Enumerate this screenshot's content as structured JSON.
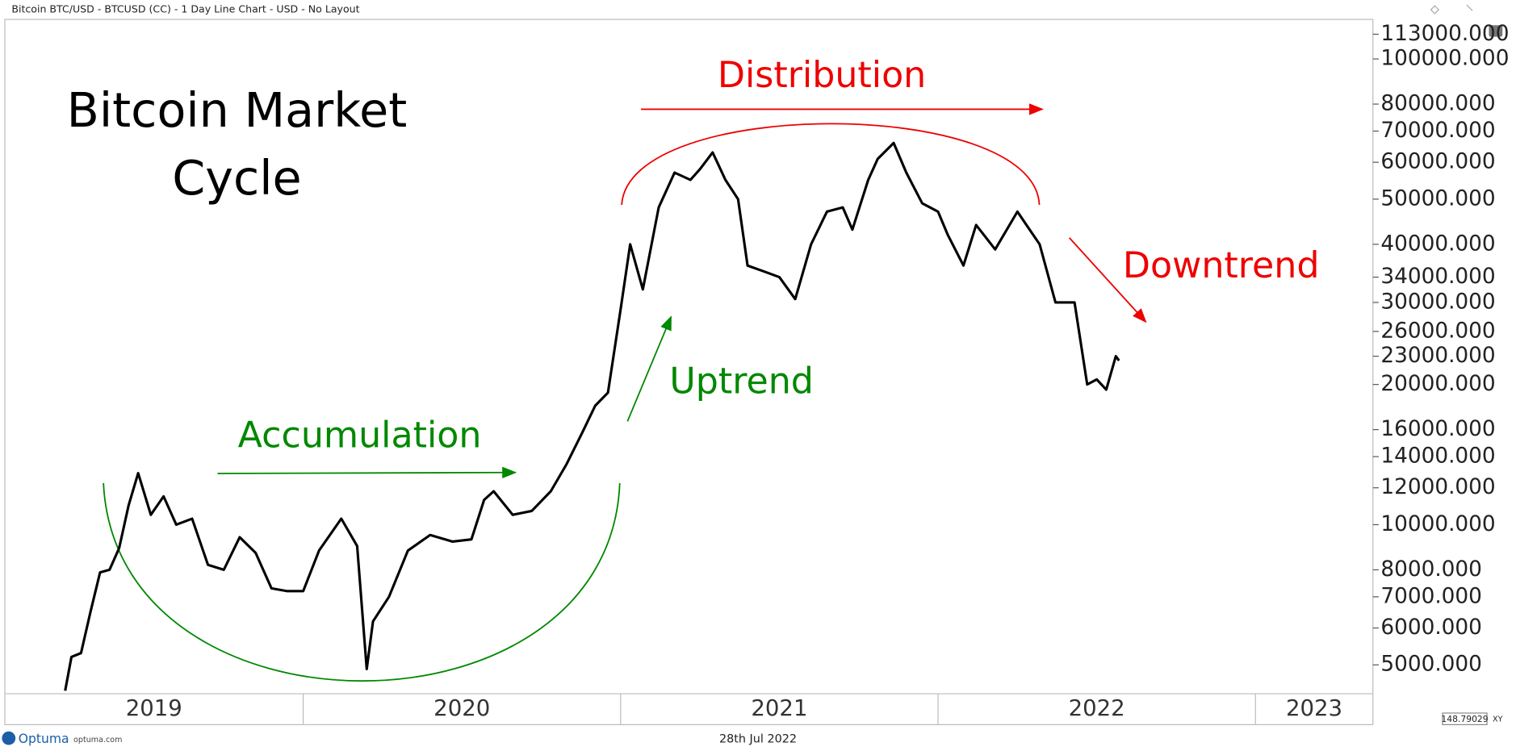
{
  "header": "Bitcoin BTC/USD - BTCUSD (CC) - 1 Day Line Chart - USD - No Layout",
  "footer": {
    "brand": "Optuma",
    "site": "optuma.com",
    "date": "28th Jul 2022",
    "price_box": "148.79029",
    "xy": "XY"
  },
  "chart_data": {
    "type": "line",
    "title": "Bitcoin Market Cycle",
    "annotations": [
      "Distribution",
      "Downtrend",
      "Uptrend",
      "Accumulation"
    ],
    "log_scale": true,
    "color": "#000000",
    "xlim": [
      2019.06,
      2023.37
    ],
    "xticks": [
      2019,
      2020,
      2021,
      2022,
      2023
    ],
    "ylim": [
      4335,
      121600
    ],
    "yticks": [
      {
        "value": 113000,
        "label": "113000.000"
      },
      {
        "value": 100000,
        "label": "100000.000"
      },
      {
        "value": 80000,
        "label": "80000.000"
      },
      {
        "value": 70000,
        "label": "70000.000"
      },
      {
        "value": 60000,
        "label": "60000.000"
      },
      {
        "value": 50000,
        "label": "50000.000"
      },
      {
        "value": 40000,
        "label": "40000.000"
      },
      {
        "value": 34000,
        "label": "34000.000"
      },
      {
        "value": 30000,
        "label": "30000.000"
      },
      {
        "value": 26000,
        "label": "26000.000"
      },
      {
        "value": 23000,
        "label": "23000.000"
      },
      {
        "value": 20000,
        "label": "20000.000"
      },
      {
        "value": 16000,
        "label": "16000.000"
      },
      {
        "value": 14000,
        "label": "14000.000"
      },
      {
        "value": 12000,
        "label": "12000.000"
      },
      {
        "value": 10000,
        "label": "10000.000"
      },
      {
        "value": 8000,
        "label": "8000.000"
      },
      {
        "value": 7000,
        "label": "7000.000"
      },
      {
        "value": 6000,
        "label": "6000.000"
      },
      {
        "value": 5000,
        "label": "5000.000"
      }
    ],
    "x": [
      2019.25,
      2019.27,
      2019.3,
      2019.33,
      2019.36,
      2019.39,
      2019.42,
      2019.45,
      2019.48,
      2019.52,
      2019.56,
      2019.6,
      2019.65,
      2019.7,
      2019.75,
      2019.8,
      2019.85,
      2019.9,
      2019.95,
      2020.0,
      2020.05,
      2020.12,
      2020.17,
      2020.2,
      2020.22,
      2020.27,
      2020.33,
      2020.4,
      2020.47,
      2020.53,
      2020.57,
      2020.6,
      2020.66,
      2020.72,
      2020.78,
      2020.83,
      2020.88,
      2020.92,
      2020.96,
      2021.0,
      2021.03,
      2021.07,
      2021.12,
      2021.17,
      2021.22,
      2021.25,
      2021.29,
      2021.33,
      2021.37,
      2021.4,
      2021.45,
      2021.5,
      2021.55,
      2021.6,
      2021.65,
      2021.7,
      2021.73,
      2021.78,
      2021.81,
      2021.86,
      2021.9,
      2021.95,
      2022.0,
      2022.03,
      2022.08,
      2022.12,
      2022.18,
      2022.25,
      2022.32,
      2022.37,
      2022.43,
      2022.47,
      2022.5,
      2022.53,
      2022.56,
      2022.57
    ],
    "series": [
      {
        "name": "BTCUSD",
        "color": "#000000",
        "values": [
          4400,
          5200,
          5300,
          6500,
          7900,
          8000,
          8900,
          11000,
          12900,
          10500,
          11500,
          10000,
          10300,
          8200,
          8000,
          9400,
          8700,
          7300,
          7200,
          7200,
          8800,
          10300,
          9000,
          4900,
          6200,
          7000,
          8800,
          9500,
          9200,
          9300,
          11300,
          11800,
          10500,
          10700,
          11800,
          13500,
          15800,
          18000,
          19200,
          29000,
          40000,
          32000,
          48000,
          57000,
          55000,
          58000,
          63000,
          55000,
          50000,
          36000,
          35000,
          34000,
          30500,
          40000,
          47000,
          48000,
          43000,
          55000,
          61000,
          66000,
          57000,
          49000,
          47000,
          42000,
          36000,
          44000,
          39000,
          47000,
          40000,
          30000,
          30000,
          20000,
          20500,
          19500,
          23000,
          22500
        ]
      }
    ]
  }
}
